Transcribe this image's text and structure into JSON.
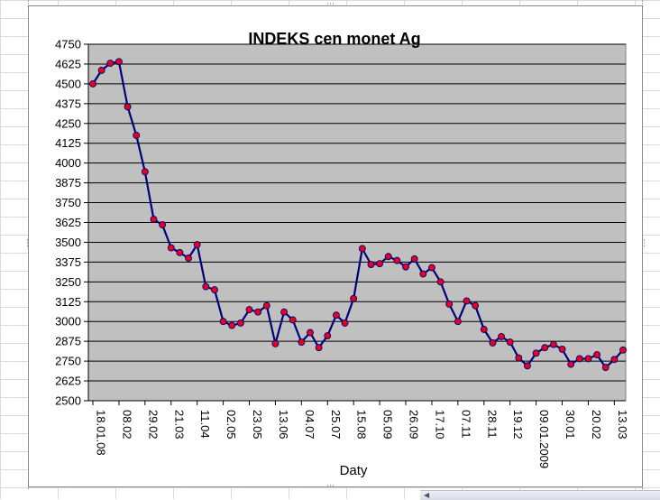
{
  "chart_data": {
    "type": "line",
    "title": "INDEKS cen monet Ag",
    "xlabel": "Daty",
    "ylabel": "",
    "ylim": [
      2500,
      4750
    ],
    "yticks": [
      2500,
      2625,
      2750,
      2875,
      3000,
      3125,
      3250,
      3375,
      3500,
      3625,
      3750,
      3875,
      4000,
      4125,
      4250,
      4375,
      4500,
      4625,
      4750
    ],
    "xtick_labels": [
      {
        "i": 0,
        "label": "18.01.08"
      },
      {
        "i": 3,
        "label": "08.02"
      },
      {
        "i": 6,
        "label": "29.02"
      },
      {
        "i": 9,
        "label": "21.03"
      },
      {
        "i": 12,
        "label": "11.04"
      },
      {
        "i": 15,
        "label": "02.05"
      },
      {
        "i": 18,
        "label": "23.05"
      },
      {
        "i": 21,
        "label": "13.06"
      },
      {
        "i": 24,
        "label": "04.07"
      },
      {
        "i": 27,
        "label": "25.07"
      },
      {
        "i": 30,
        "label": "15.08"
      },
      {
        "i": 33,
        "label": "05.09"
      },
      {
        "i": 36,
        "label": "26.09"
      },
      {
        "i": 39,
        "label": "17.10"
      },
      {
        "i": 42,
        "label": "07.11"
      },
      {
        "i": 45,
        "label": "28.11"
      },
      {
        "i": 48,
        "label": "19.12"
      },
      {
        "i": 51,
        "label": "09.01.2009"
      },
      {
        "i": 54,
        "label": "30.01"
      },
      {
        "i": 57,
        "label": "20.02"
      },
      {
        "i": 60,
        "label": "13.03"
      }
    ],
    "series": [
      {
        "color": "#00007a",
        "marker_color": "#e8001c",
        "values": [
          4500,
          4585,
          4630,
          4640,
          4355,
          4175,
          3945,
          3645,
          3610,
          3465,
          3435,
          3400,
          3485,
          3220,
          3200,
          3000,
          2975,
          2990,
          3075,
          3060,
          3100,
          2860,
          3060,
          3010,
          2870,
          2930,
          2835,
          2910,
          3040,
          2990,
          3145,
          3460,
          3360,
          3365,
          3410,
          3385,
          3345,
          3395,
          3300,
          3340,
          3250,
          3110,
          3000,
          3130,
          3100,
          2950,
          2865,
          2905,
          2870,
          2770,
          2720,
          2800,
          2835,
          2855,
          2825,
          2730,
          2765,
          2765,
          2790,
          2710,
          2760,
          2820
        ]
      }
    ],
    "grid": "horizontal",
    "plot_background": "#c0c0c0",
    "legend": "none"
  }
}
